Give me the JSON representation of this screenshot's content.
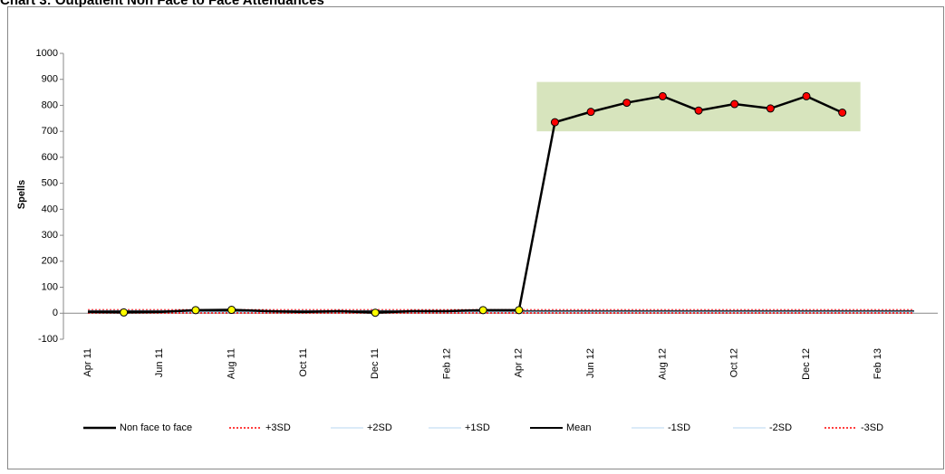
{
  "chart_data": {
    "type": "line",
    "title": "Chart 3: Outpatient Non Face to Face Attendances",
    "y_label": "Spells",
    "categories": [
      "Apr 11",
      null,
      "Jun 11",
      null,
      "Aug 11",
      null,
      "Oct 11",
      null,
      "Dec 11",
      null,
      "Feb 12",
      null,
      "Apr 12",
      null,
      "Jun 12",
      null,
      "Aug 12",
      null,
      "Oct 12",
      null,
      "Dec 12",
      null,
      "Feb 13",
      null
    ],
    "series": [
      {
        "name": "Non face to face",
        "color": "#000000",
        "width": 2.5,
        "values": [
          5,
          3,
          5,
          12,
          13,
          8,
          5,
          8,
          2,
          8,
          8,
          12,
          12,
          735,
          775,
          810,
          835,
          780,
          805,
          788,
          835,
          772,
          null,
          null
        ],
        "marker_colors": [
          null,
          "#ffff00",
          null,
          "#ffff00",
          "#ffff00",
          null,
          null,
          null,
          "#ffff00",
          null,
          null,
          "#ffff00",
          "#ffff00",
          "#ff0000",
          "#ff0000",
          "#ff0000",
          "#ff0000",
          "#ff0000",
          "#ff0000",
          "#ff0000",
          "#ff0000",
          "#ff0000",
          null,
          null
        ]
      },
      {
        "name": "+3SD",
        "color": "#ff0000",
        "width": 1.5,
        "dash": true,
        "values": [
          13,
          13,
          13,
          13,
          13,
          13,
          13,
          13,
          13,
          13,
          13,
          13,
          13,
          13,
          13,
          13,
          13,
          13,
          13,
          13,
          13,
          13,
          13,
          13
        ]
      },
      {
        "name": "+2SD",
        "color": "#b7d7f0",
        "width": 1,
        "dash": false,
        "values": [
          11,
          11,
          11,
          11,
          11,
          11,
          11,
          11,
          11,
          11,
          11,
          11,
          11,
          11,
          11,
          11,
          11,
          11,
          11,
          11,
          11,
          11,
          11,
          11
        ]
      },
      {
        "name": "+1SD",
        "color": "#b7d7f0",
        "width": 1,
        "dash": false,
        "values": [
          9,
          9,
          9,
          9,
          9,
          9,
          9,
          9,
          9,
          9,
          9,
          9,
          9,
          9,
          9,
          9,
          9,
          9,
          9,
          9,
          9,
          9,
          9,
          9
        ]
      },
      {
        "name": "Mean",
        "color": "#000000",
        "width": 2,
        "dash": false,
        "values": [
          7,
          7,
          7,
          7,
          7,
          7,
          7,
          7,
          7,
          7,
          7,
          7,
          7,
          7,
          7,
          7,
          7,
          7,
          7,
          7,
          7,
          7,
          7,
          7
        ]
      },
      {
        "name": "-1SD",
        "color": "#b7d7f0",
        "width": 1,
        "dash": false,
        "values": [
          5,
          5,
          5,
          5,
          5,
          5,
          5,
          5,
          5,
          5,
          5,
          5,
          5,
          5,
          5,
          5,
          5,
          5,
          5,
          5,
          5,
          5,
          5,
          5
        ]
      },
      {
        "name": "-2SD",
        "color": "#b7d7f0",
        "width": 1,
        "dash": false,
        "values": [
          3,
          3,
          3,
          3,
          3,
          3,
          3,
          3,
          3,
          3,
          3,
          3,
          3,
          3,
          3,
          3,
          3,
          3,
          3,
          3,
          3,
          3,
          3,
          3
        ]
      },
      {
        "name": "-3SD",
        "color": "#ff0000",
        "width": 1.5,
        "dash": true,
        "values": [
          1,
          1,
          1,
          1,
          1,
          1,
          1,
          1,
          1,
          1,
          1,
          1,
          1,
          1,
          1,
          1,
          1,
          1,
          1,
          1,
          1,
          1,
          1,
          1
        ]
      }
    ],
    "highlight_ylim": [
      700,
      890
    ],
    "highlight_color": "#d7e4bd",
    "ylim": [
      -100,
      1000
    ],
    "yticks": [
      -100,
      0,
      100,
      200,
      300,
      400,
      500,
      600,
      700,
      800,
      900,
      1000
    ],
    "legend": "bottom"
  }
}
